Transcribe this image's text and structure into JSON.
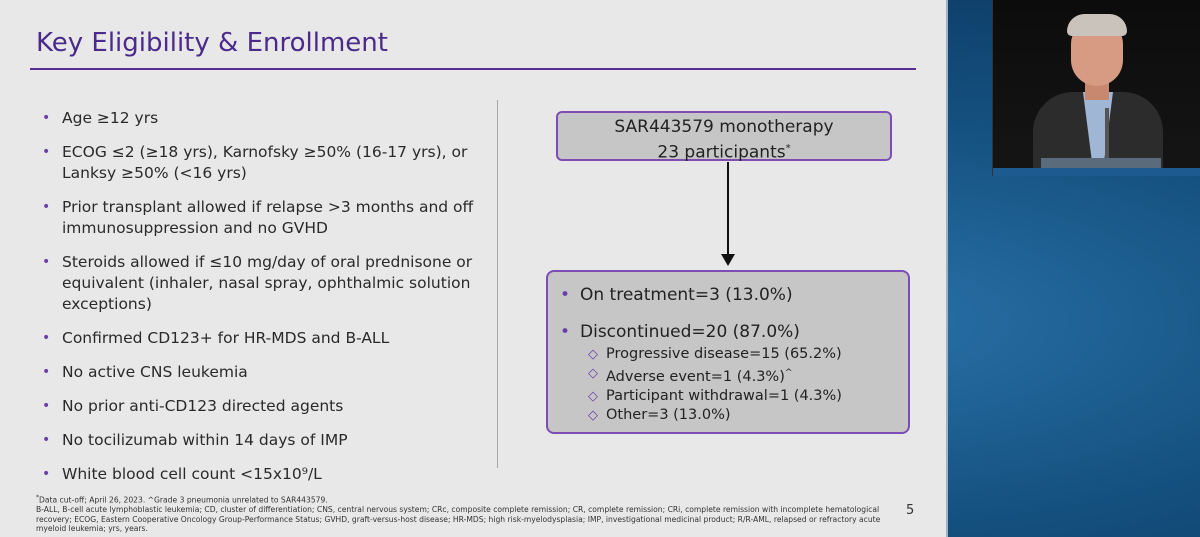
{
  "slide": {
    "title": "Key Eligibility & Enrollment",
    "bullets": [
      "Age ≥12 yrs",
      "ECOG ≤2 (≥18 yrs), Karnofsky ≥50% (16-17 yrs), or Lanksy ≥50% (<16 yrs)",
      "Prior transplant allowed if relapse >3 months and off immunosuppression and no GVHD",
      "Steroids allowed if ≤10 mg/day of oral prednisone or equivalent (inhaler, nasal spray, ophthalmic solution exceptions)",
      "Confirmed CD123+ for HR-MDS and B-ALL",
      "No active CNS leukemia",
      "No prior anti-CD123 directed agents",
      "No tocilizumab within 14 days of IMP",
      "White blood cell count <15x10⁹/L"
    ],
    "flow": {
      "top_line1": "SAR443579 monotherapy",
      "top_line2": "23 participants",
      "top_mark": "*",
      "on_treatment": "On treatment=3 (13.0%)",
      "discontinued": "Discontinued=20 (87.0%)",
      "reasons": [
        "Progressive disease=15 (65.2%)",
        "Adverse event=1 (4.3%)",
        "Participant withdrawal=1 (4.3%)",
        "Other=3 (13.0%)"
      ],
      "adverse_mark": "^"
    },
    "footnote": {
      "mark": "*",
      "line1": "Data cut-off; April 26, 2023. ^Grade 3 pneumonia unrelated to SAR443579.",
      "line2": "B-ALL, B-cell acute lymphoblastic leukemia; CD, cluster of differentiation; CNS, central nervous system; CRc, composite complete remission; CR, complete remission; CRi, complete remission with incomplete hematological recovery; ECOG, Eastern Cooperative Oncology Group-Performance Status; GVHD, graft-versus-host disease; HR-MDS; high risk-myelodysplasia; IMP, investigational medicinal product; R/R-AML, relapsed or refractory acute myeloid leukemia; yrs, years."
    },
    "page_number": "5"
  },
  "colors": {
    "title": "#4a2b8c",
    "accent": "#7c4db5",
    "box_fill": "#c6c6c6",
    "slide_bg": "#e8e8e8",
    "screen_bg": "#14507f"
  },
  "icons": {
    "bullet": "bullet-dot-icon",
    "sub_bullet": "diamond-outline-icon",
    "arrow": "arrow-down-icon"
  }
}
